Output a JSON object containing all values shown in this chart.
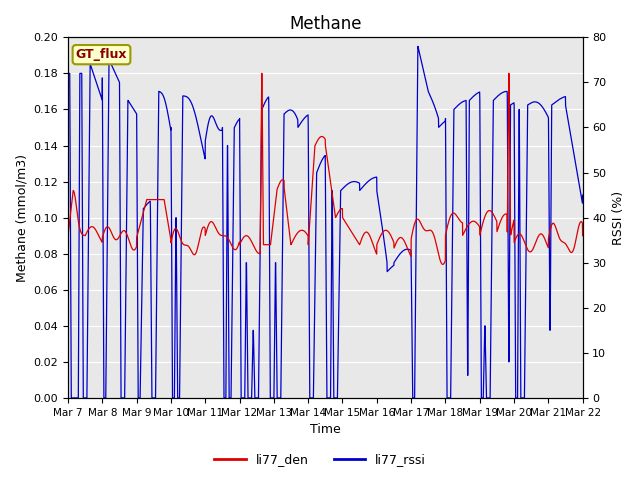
{
  "title": "Methane",
  "ylabel_left": "Methane (mmol/m3)",
  "ylabel_right": "RSSI (%)",
  "xlabel": "Time",
  "ylim_left": [
    0.0,
    0.2
  ],
  "ylim_right": [
    0,
    80
  ],
  "yticks_left": [
    0.0,
    0.02,
    0.04,
    0.06,
    0.08,
    0.1,
    0.12,
    0.14,
    0.16,
    0.18,
    0.2
  ],
  "yticks_right": [
    0,
    10,
    20,
    30,
    40,
    50,
    60,
    70,
    80
  ],
  "xtick_labels": [
    "Mar 7",
    "Mar 8",
    "Mar 9",
    "Mar 10",
    "Mar 11",
    "Mar 12",
    "Mar 13",
    "Mar 14",
    "Mar 15",
    "Mar 16",
    "Mar 17",
    "Mar 18",
    "Mar 19",
    "Mar 20",
    "Mar 21",
    "Mar 22"
  ],
  "color_red": "#dd0000",
  "color_blue": "#0000cc",
  "legend_label_red": "li77_den",
  "legend_label_blue": "li77_rssi",
  "box_label": "GT_flux",
  "box_facecolor": "#ffffcc",
  "box_edgecolor": "#999900",
  "box_text_color": "#880000",
  "background_color": "#e8e8e8",
  "title_fontsize": 12,
  "axis_label_fontsize": 9,
  "tick_fontsize": 8
}
